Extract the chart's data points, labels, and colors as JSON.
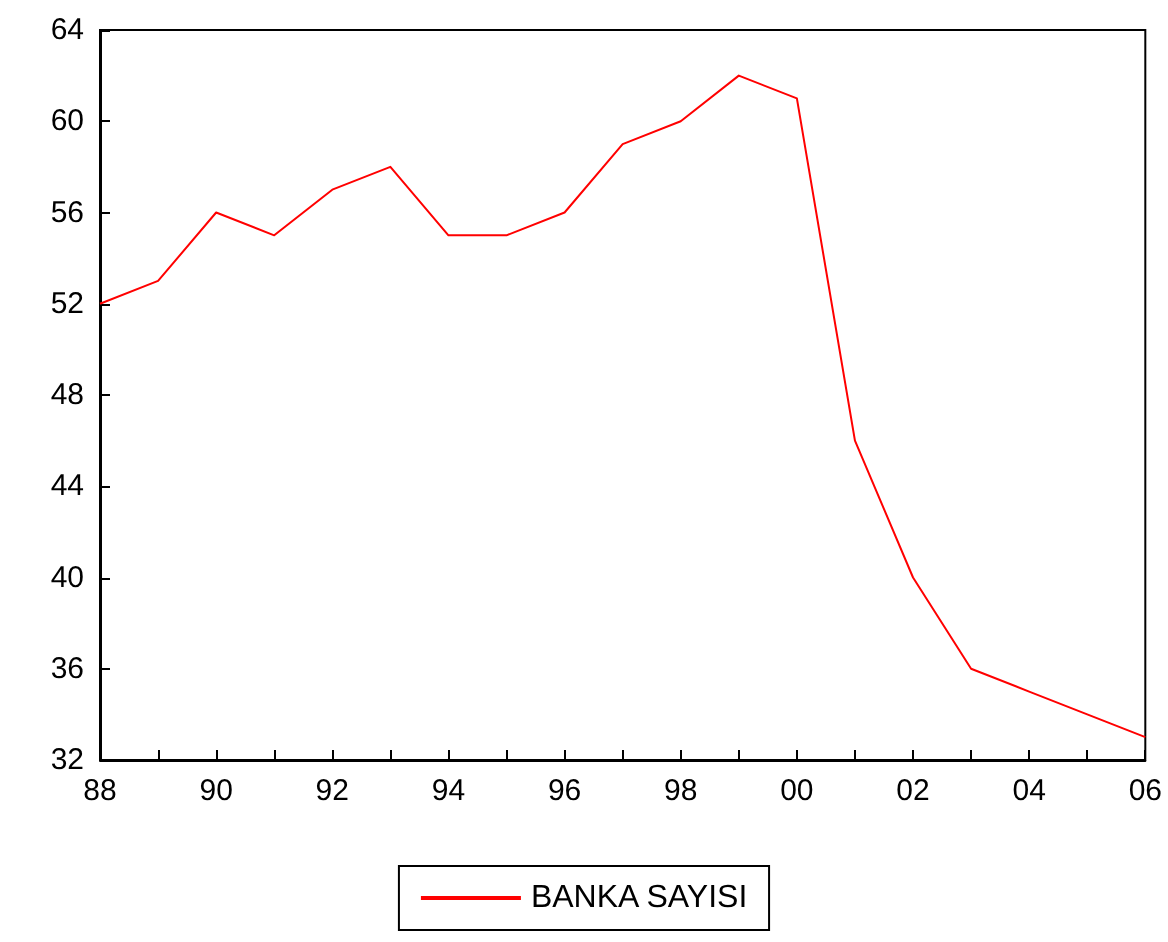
{
  "chart_data": {
    "type": "line",
    "categories": [
      "88",
      null,
      "90",
      null,
      "92",
      null,
      "94",
      null,
      "96",
      null,
      "98",
      null,
      "00",
      null,
      "02",
      null,
      "04",
      null,
      "06"
    ],
    "series": [
      {
        "name": "BANKA SAYISI",
        "color": "#ff0000",
        "values": [
          52,
          53,
          56,
          55,
          57,
          58,
          55,
          55,
          56,
          59,
          60,
          62,
          61,
          46,
          40,
          36,
          35,
          34,
          33
        ]
      }
    ],
    "ylim": [
      32,
      64
    ],
    "yticks": [
      32,
      36,
      40,
      44,
      48,
      52,
      56,
      60,
      64
    ],
    "grid": false,
    "legend": "bottom",
    "marker": "none",
    "line_style": "solid"
  }
}
